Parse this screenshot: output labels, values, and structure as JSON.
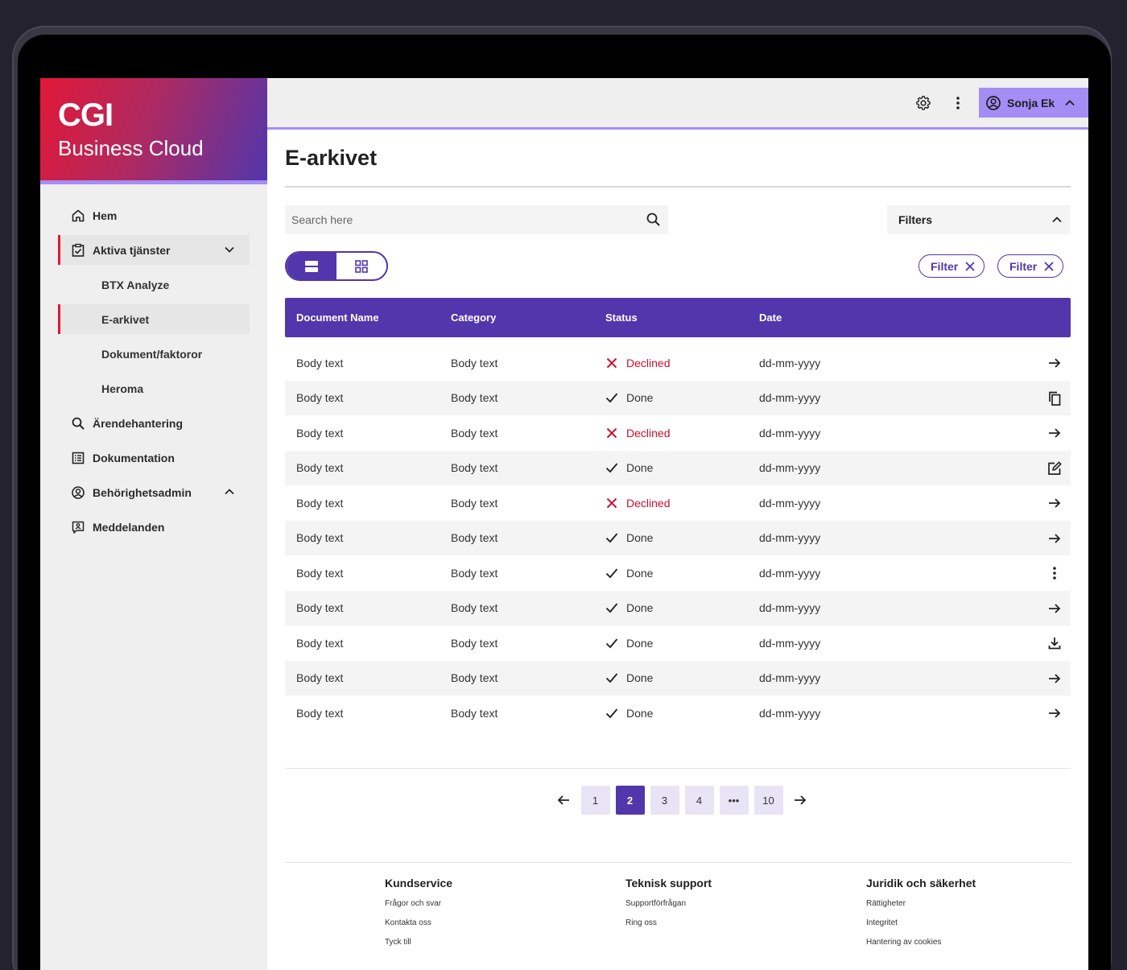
{
  "brand": {
    "logo": "CGI",
    "name": "Business Cloud"
  },
  "topbar": {
    "user_name": "Sonja Ek"
  },
  "sidebar": {
    "items": [
      {
        "label": "Hem"
      },
      {
        "label": "Aktiva tjänster"
      },
      {
        "label": "BTX Analyze"
      },
      {
        "label": "E-arkivet"
      },
      {
        "label": "Dokument/faktoror"
      },
      {
        "label": "Heroma"
      },
      {
        "label": "Ärendehantering"
      },
      {
        "label": "Dokumentation"
      },
      {
        "label": "Behörighetsadmin"
      },
      {
        "label": "Meddelanden"
      }
    ]
  },
  "main": {
    "title": "E-arkivet",
    "search_placeholder": "Search here",
    "filters_label": "Filters",
    "chips": [
      "Filter",
      "Filter"
    ]
  },
  "table": {
    "headers": [
      "Document Name",
      "Category",
      "Status",
      "Date"
    ],
    "rows": [
      {
        "name": "Body text",
        "category": "Body text",
        "status": "Declined",
        "date": "dd-mm-yyyy",
        "action": "arrow-right-icon"
      },
      {
        "name": "Body text",
        "category": "Body text",
        "status": "Done",
        "date": "dd-mm-yyyy",
        "action": "copy-icon"
      },
      {
        "name": "Body text",
        "category": "Body text",
        "status": "Declined",
        "date": "dd-mm-yyyy",
        "action": "arrow-right-icon"
      },
      {
        "name": "Body text",
        "category": "Body text",
        "status": "Done",
        "date": "dd-mm-yyyy",
        "action": "edit-icon"
      },
      {
        "name": "Body text",
        "category": "Body text",
        "status": "Declined",
        "date": "dd-mm-yyyy",
        "action": "arrow-right-icon"
      },
      {
        "name": "Body text",
        "category": "Body text",
        "status": "Done",
        "date": "dd-mm-yyyy",
        "action": "arrow-right-icon"
      },
      {
        "name": "Body text",
        "category": "Body text",
        "status": "Done",
        "date": "dd-mm-yyyy",
        "action": "more-vertical-icon"
      },
      {
        "name": "Body text",
        "category": "Body text",
        "status": "Done",
        "date": "dd-mm-yyyy",
        "action": "arrow-right-icon"
      },
      {
        "name": "Body text",
        "category": "Body text",
        "status": "Done",
        "date": "dd-mm-yyyy",
        "action": "download-icon"
      },
      {
        "name": "Body text",
        "category": "Body text",
        "status": "Done",
        "date": "dd-mm-yyyy",
        "action": "arrow-right-icon"
      },
      {
        "name": "Body text",
        "category": "Body text",
        "status": "Done",
        "date": "dd-mm-yyyy",
        "action": "arrow-right-icon"
      }
    ]
  },
  "pagination": {
    "pages": [
      "1",
      "2",
      "3",
      "4",
      "•••",
      "10"
    ],
    "current": "2"
  },
  "footer": {
    "columns": [
      {
        "title": "Kundservice",
        "links": [
          "Frågor och svar",
          "Kontakta oss",
          "Tyck till"
        ]
      },
      {
        "title": "Teknisk support",
        "links": [
          "Supportförfrågan",
          "Ring oss"
        ]
      },
      {
        "title": "Juridik och säkerhet",
        "links": [
          "Rättigheter",
          "Integritet",
          "Hantering av cookies"
        ]
      }
    ]
  },
  "colors": {
    "primary": "#5236ab",
    "accent": "#a48df5",
    "danger": "#c8102e",
    "brand_red": "#e11837"
  }
}
